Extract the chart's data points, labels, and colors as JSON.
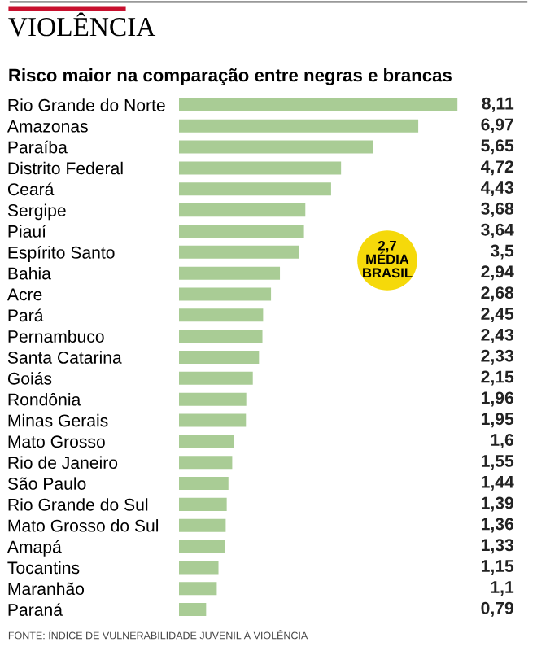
{
  "chart_data": {
    "type": "bar",
    "orientation": "horizontal",
    "title": "VIOLÊNCIA",
    "subtitle": "Risco maior na comparação entre negras e brancas",
    "categories": [
      "Rio Grande do Norte",
      "Amazonas",
      "Paraíba",
      "Distrito Federal",
      "Ceará",
      "Sergipe",
      "Piauí",
      "Espírito Santo",
      "Bahia",
      "Acre",
      "Pará",
      "Pernambuco",
      "Santa Catarina",
      "Goiás",
      "Rondônia",
      "Minas Gerais",
      "Mato Grosso",
      "Rio de Janeiro",
      "São Paulo",
      "Rio Grande do Sul",
      "Mato Grosso do Sul",
      "Amapá",
      "Tocantins",
      "Maranhão",
      "Paraná"
    ],
    "values": [
      8.11,
      6.97,
      5.65,
      4.72,
      4.43,
      3.68,
      3.64,
      3.5,
      2.94,
      2.68,
      2.45,
      2.43,
      2.33,
      2.15,
      1.96,
      1.95,
      1.6,
      1.55,
      1.44,
      1.39,
      1.36,
      1.33,
      1.15,
      1.1,
      0.79
    ],
    "value_labels": [
      "8,11",
      "6,97",
      "5,65",
      "4,72",
      "4,43",
      "3,68",
      "3,64",
      "3,5",
      "2,94",
      "2,68",
      "2,45",
      "2,43",
      "2,33",
      "2,15",
      "1,96",
      "1,95",
      "1,6",
      "1,55",
      "1,44",
      "1,39",
      "1,36",
      "1,33",
      "1,15",
      "1,1",
      "0,79"
    ],
    "color": "#a9cc95",
    "xlim": [
      0,
      8.2
    ],
    "tick_labels": "y",
    "grid": false,
    "legend": false,
    "annotations": [
      "2,7\nMÉDIA\nBRASIL",
      "FONTE: ÍNDICE DE VULNERABILIDADE JUVENIL À VIOLÊNCIA"
    ]
  }
}
